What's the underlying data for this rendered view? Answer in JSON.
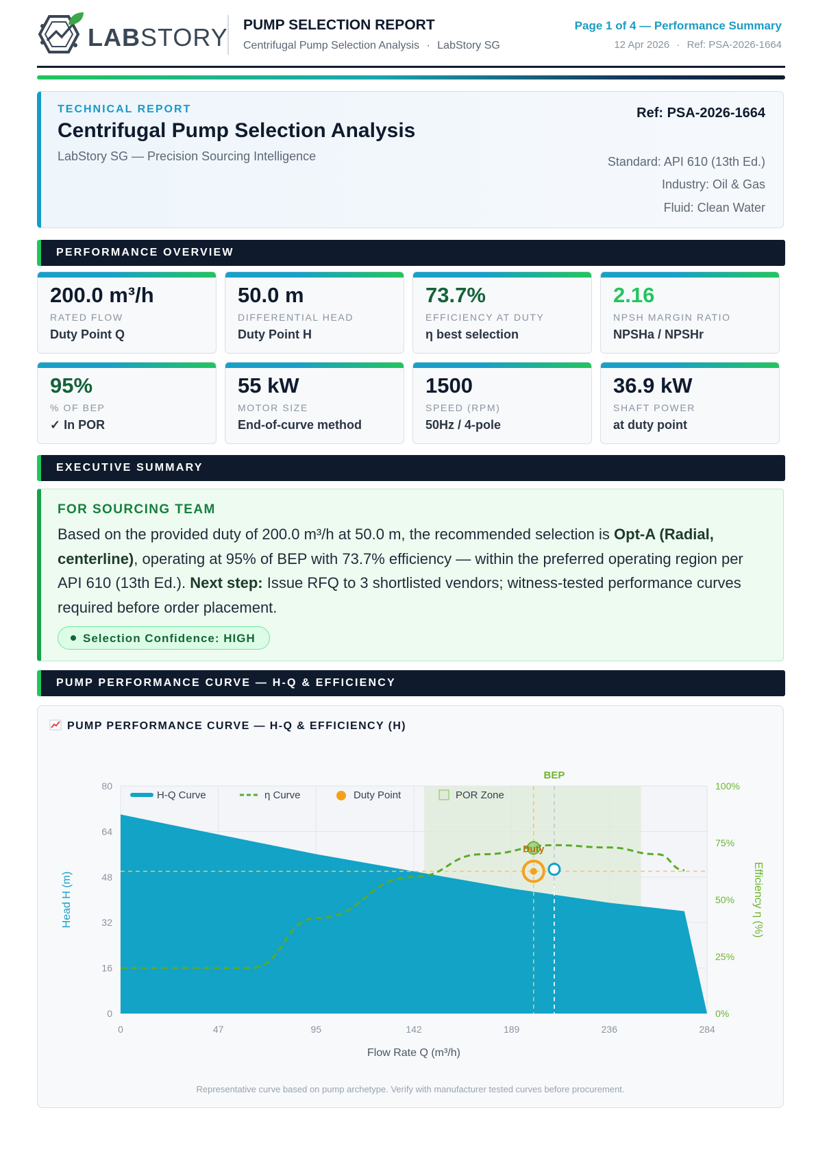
{
  "header": {
    "brand": "LABSTORY",
    "title": "PUMP SELECTION REPORT",
    "subtitle": "Centrifugal Pump Selection Analysis",
    "company": "LabStory SG",
    "page": "Page 1 of 4 — Performance Summary",
    "date": "12 Apr 2026",
    "ref": "Ref: PSA-2026-1664"
  },
  "title_card": {
    "kicker": "TECHNICAL REPORT",
    "title": "Centrifugal Pump Selection Analysis",
    "subtitle": "LabStory SG — Precision Sourcing Intelligence",
    "ref": "Ref: PSA-2026-1664",
    "standard": "Standard: API 610 (13th Ed.)",
    "industry": "Industry: Oil & Gas",
    "fluid": "Fluid: Clean Water"
  },
  "sections": {
    "overview": "PERFORMANCE OVERVIEW",
    "summary": "EXECUTIVE SUMMARY",
    "curve": "PUMP PERFORMANCE CURVE — H-Q & EFFICIENCY"
  },
  "kpis": [
    {
      "value": "200.0 m³/h",
      "label": "RATED FLOW",
      "note": "Duty Point Q",
      "color": "#0f1b2d"
    },
    {
      "value": "50.0 m",
      "label": "DIFFERENTIAL HEAD",
      "note": "Duty Point H",
      "color": "#0f1b2d"
    },
    {
      "value": "73.7%",
      "label": "EFFICIENCY AT DUTY",
      "note": "η best selection",
      "color": "#15613a"
    },
    {
      "value": "2.16",
      "label": "NPSH MARGIN RATIO",
      "note": "NPSHa / NPSHr",
      "color": "#22c55e"
    },
    {
      "value": "95%",
      "label": "% OF BEP",
      "note": "✓ In POR",
      "color": "#15613a"
    },
    {
      "value": "55 kW",
      "label": "MOTOR SIZE",
      "note": "End-of-curve method",
      "color": "#0f1b2d"
    },
    {
      "value": "1500",
      "label": "SPEED (RPM)",
      "note": "50Hz / 4-pole",
      "color": "#0f1b2d"
    },
    {
      "value": "36.9 kW",
      "label": "SHAFT POWER",
      "note": "at duty point",
      "color": "#0f1b2d"
    }
  ],
  "summary": {
    "heading": "FOR SOURCING TEAM",
    "t1": "Based on the provided duty of 200.0 m³/h at 50.0 m, the recommended selection is ",
    "b1": "Opt-A (Radial, centerline)",
    "t2": ", operating at 95% of BEP with 73.7% efficiency — within the preferred operating region per API 610 (13th Ed.). ",
    "b2": "Next step:",
    "t3": " Issue RFQ to 3 shortlisted vendors; witness-tested performance curves required before order placement.",
    "confidence": "Selection Confidence: HIGH"
  },
  "chart_title": "PUMP PERFORMANCE CURVE — H-Q & EFFICIENCY (H)",
  "chart_footnote": "Representative curve based on pump archetype. Verify with manufacturer tested curves before procurement.",
  "chart_data": {
    "type": "area",
    "xlabel": "Flow Rate Q (m³/h)",
    "ylabel": "Head H (m)",
    "y2label": "Efficiency η (%)",
    "xlim": [
      0,
      284
    ],
    "ylim": [
      0,
      80
    ],
    "y2lim": [
      0,
      100
    ],
    "x_ticks": [
      "0",
      "47",
      "95",
      "142",
      "189",
      "236",
      "284"
    ],
    "y_ticks": [
      "0",
      "16",
      "32",
      "48",
      "64",
      "80"
    ],
    "y2_ticks": [
      "0%",
      "25%",
      "50%",
      "75%",
      "100%"
    ],
    "legend": [
      "H-Q Curve",
      "η Curve",
      "Duty Point",
      "POR Zone"
    ],
    "hq_series": {
      "name": "H-Q Curve",
      "x": [
        0,
        47,
        95,
        142,
        189,
        236,
        273,
        284
      ],
      "y": [
        70,
        63,
        56,
        50,
        44,
        39,
        36,
        0
      ],
      "color": "#12a3c7"
    },
    "eta_series": {
      "name": "η Curve",
      "x": [
        0,
        63,
        95,
        142,
        175,
        210,
        236,
        260,
        273
      ],
      "y": [
        20,
        20,
        42,
        60,
        70,
        74,
        73,
        70,
        63
      ],
      "color": "#5aaa2a"
    },
    "duty_point": {
      "label": "Duty",
      "x": 200,
      "y": 50,
      "color": "#f5a01d"
    },
    "bep": {
      "label": "BEP",
      "x": 210,
      "y": 50,
      "eta": 74,
      "color": "#12a3c7"
    },
    "por_zone": {
      "x0": 147,
      "x1": 252
    }
  }
}
